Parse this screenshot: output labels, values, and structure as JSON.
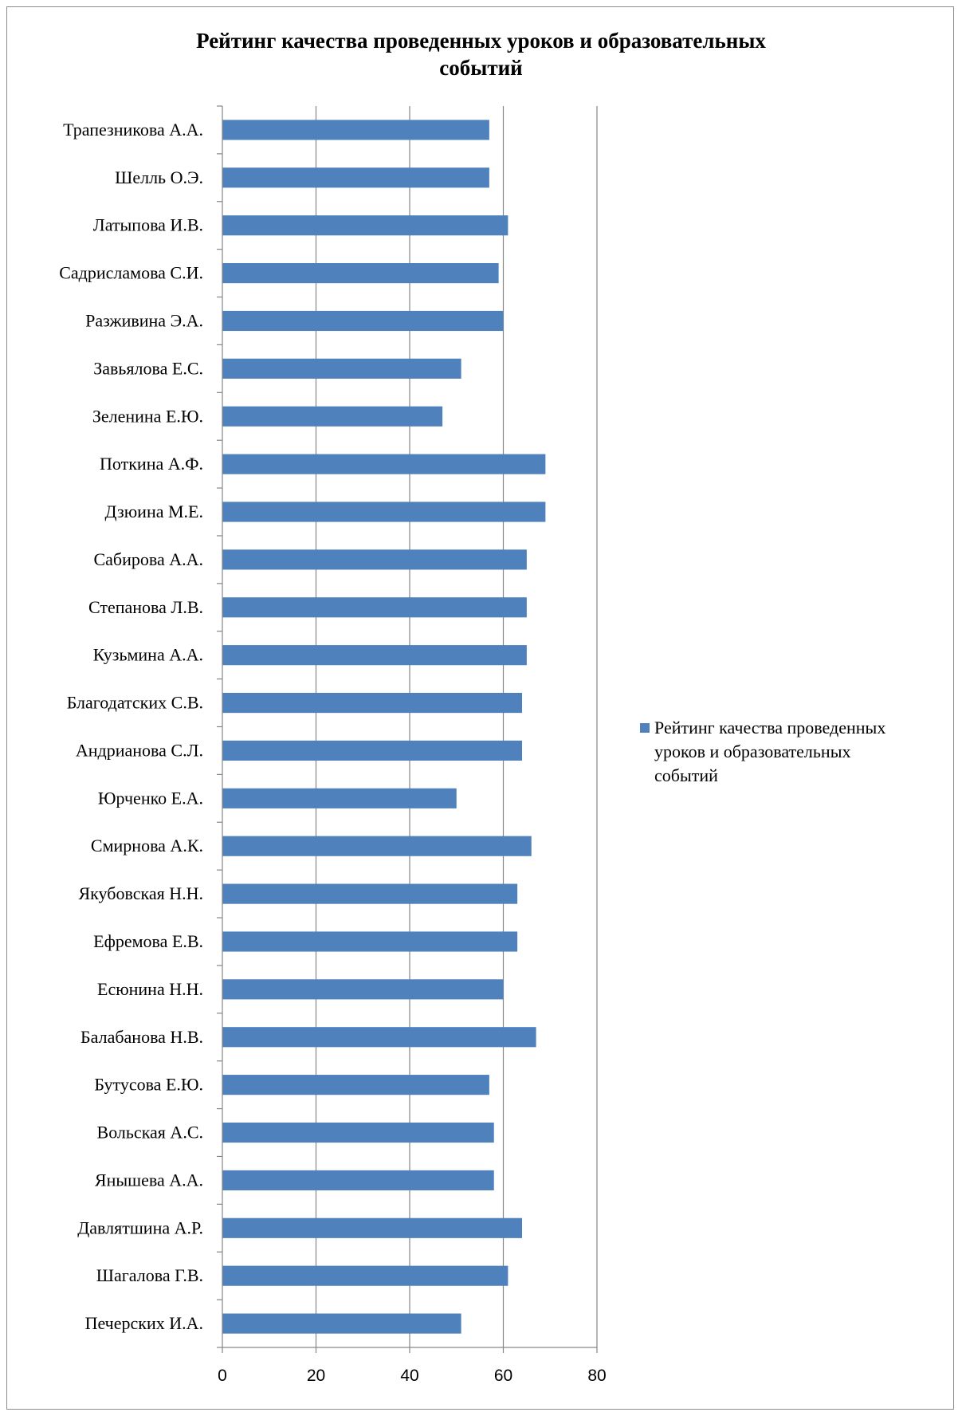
{
  "chart_data": {
    "type": "bar",
    "orientation": "horizontal",
    "title_lines": [
      "Рейтинг качества проведенных уроков и образовательных",
      "событий"
    ],
    "categories": [
      "Трапезникова А.А.",
      "Шелль О.Э.",
      "Латыпова И.В.",
      "Садрисламова С.И.",
      "Разживина Э.А.",
      "Завьялова Е.С.",
      "Зеленина Е.Ю.",
      "Поткина А.Ф.",
      "Дзюина М.Е.",
      "Сабирова А.А.",
      "Степанова Л.В.",
      "Кузьмина А.А.",
      "Благодатских С.В.",
      "Андрианова С.Л.",
      "Юрченко Е.А.",
      "Смирнова А.К.",
      "Якубовская Н.Н.",
      "Ефремова Е.В.",
      "Есюнина Н.Н.",
      "Балабанова Н.В.",
      "Бутусова Е.Ю.",
      "Вольская А.С.",
      "Янышева А.А.",
      "Давлятшина А.Р.",
      "Шагалова Г.В.",
      "Печерских И.А."
    ],
    "series": [
      {
        "name": "Рейтинг качества проведенных уроков и образовательных событий",
        "color": "#4f81bd",
        "values": [
          57,
          57,
          61,
          59,
          60,
          51,
          47,
          69,
          69,
          65,
          65,
          65,
          64,
          64,
          50,
          66,
          63,
          63,
          60,
          67,
          57,
          58,
          58,
          64,
          61,
          51
        ]
      }
    ],
    "xlim": [
      0,
      80
    ],
    "xticks": [
      "0",
      "20",
      "40",
      "60",
      "80"
    ],
    "grid": "vertical",
    "legend_position": "right",
    "legend_lines": [
      "Рейтинг качества проведенных",
      "уроков и образовательных",
      "событий"
    ]
  }
}
